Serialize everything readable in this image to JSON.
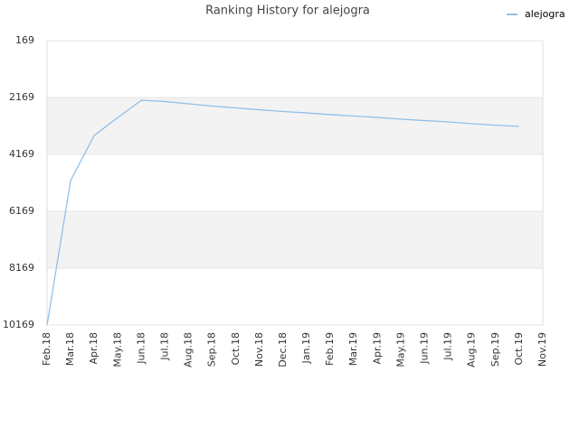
{
  "chart_data": {
    "type": "line",
    "title": "Ranking History for alejogra",
    "categories": [
      "Feb.18",
      "Mar.18",
      "Apr.18",
      "May.18",
      "Jun.18",
      "Jul.18",
      "Aug.18",
      "Sep.18",
      "Oct.18",
      "Nov.18",
      "Dec.18",
      "Jan.19",
      "Feb.19",
      "Mar.19",
      "Apr.19",
      "May.19",
      "Jun.19",
      "Jul.19",
      "Aug.19",
      "Sep.19",
      "Oct.19",
      "Nov.19"
    ],
    "series": [
      {
        "name": "alejogra",
        "color": "#90c0ea",
        "values": [
          10169,
          5090,
          3500,
          2870,
          2265,
          2310,
          2390,
          2470,
          2535,
          2600,
          2660,
          2710,
          2770,
          2820,
          2870,
          2930,
          2980,
          3025,
          3090,
          3140,
          3185,
          null
        ]
      }
    ],
    "ylim": [
      10169,
      169
    ],
    "yticks": [
      169,
      2169,
      4169,
      6169,
      8169,
      10169
    ],
    "grid": true,
    "legend": "top-right"
  }
}
